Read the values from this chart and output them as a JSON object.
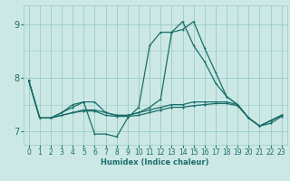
{
  "xlabel": "Humidex (Indice chaleur)",
  "bg_color": "#cce8e5",
  "grid_color": "#99ccc8",
  "line_color": "#1a6e6a",
  "x_min": -0.5,
  "x_max": 23.5,
  "y_min": 6.75,
  "y_max": 9.35,
  "yticks": [
    7,
    8,
    9
  ],
  "xticks": [
    0,
    1,
    2,
    3,
    4,
    5,
    6,
    7,
    8,
    9,
    10,
    11,
    12,
    13,
    14,
    15,
    16,
    17,
    18,
    19,
    20,
    21,
    22,
    23
  ],
  "lines": [
    {
      "x": [
        0,
        1,
        2,
        3,
        4,
        5,
        6,
        7,
        8,
        9,
        10,
        11,
        12,
        13,
        14,
        15,
        16,
        17,
        18,
        19,
        20,
        21,
        22,
        23
      ],
      "y": [
        7.95,
        7.25,
        7.25,
        7.35,
        7.45,
        7.55,
        6.95,
        6.95,
        6.9,
        7.25,
        7.45,
        8.6,
        8.85,
        8.85,
        9.05,
        8.6,
        8.3,
        7.9,
        7.65,
        7.5,
        7.25,
        7.1,
        7.2,
        7.3
      ]
    },
    {
      "x": [
        0,
        1,
        2,
        3,
        4,
        5,
        6,
        7,
        8,
        9,
        10,
        11,
        12,
        13,
        14,
        15,
        16,
        17,
        18,
        19,
        20,
        21,
        22,
        23
      ],
      "y": [
        7.95,
        7.25,
        7.25,
        7.35,
        7.5,
        7.55,
        7.55,
        7.35,
        7.3,
        7.3,
        7.35,
        7.45,
        7.6,
        8.85,
        8.9,
        9.05,
        8.55,
        8.1,
        7.65,
        7.5,
        7.25,
        7.1,
        7.2,
        7.3
      ]
    },
    {
      "x": [
        0,
        1,
        2,
        3,
        4,
        5,
        6,
        7,
        8,
        9,
        10,
        11,
        12,
        13,
        14,
        15,
        16,
        17,
        18,
        19,
        20,
        21,
        22,
        23
      ],
      "y": [
        7.95,
        7.25,
        7.25,
        7.3,
        7.35,
        7.4,
        7.4,
        7.35,
        7.3,
        7.3,
        7.35,
        7.4,
        7.45,
        7.5,
        7.5,
        7.55,
        7.55,
        7.55,
        7.55,
        7.5,
        7.25,
        7.1,
        7.2,
        7.3
      ]
    },
    {
      "x": [
        0,
        1,
        2,
        3,
        4,
        5,
        6,
        7,
        8,
        9,
        10,
        11,
        12,
        13,
        14,
        15,
        16,
        17,
        18,
        19,
        20,
        21,
        22,
        23
      ],
      "y": [
        7.95,
        7.25,
        7.25,
        7.3,
        7.35,
        7.38,
        7.38,
        7.3,
        7.28,
        7.28,
        7.3,
        7.35,
        7.4,
        7.45,
        7.45,
        7.48,
        7.5,
        7.52,
        7.52,
        7.48,
        7.25,
        7.1,
        7.15,
        7.28
      ]
    }
  ]
}
